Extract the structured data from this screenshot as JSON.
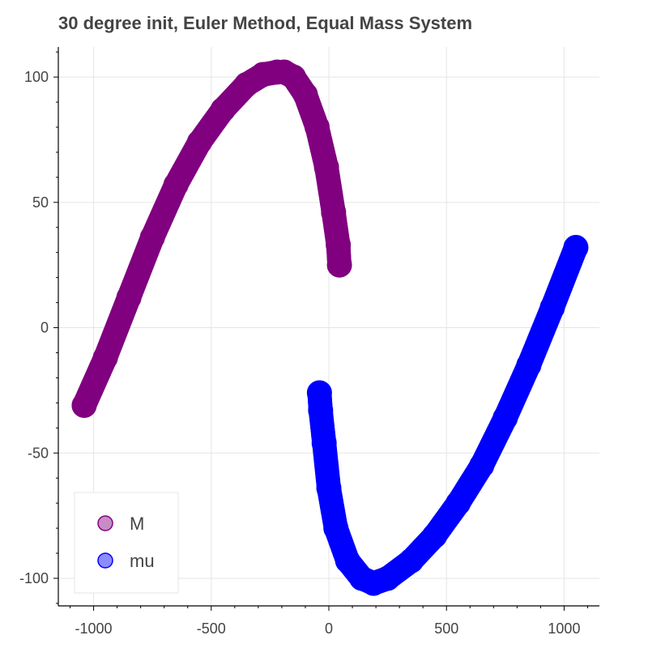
{
  "chart_data": {
    "type": "scatter",
    "title": "30 degree init, Euler Method, Equal Mass System",
    "xlabel": "",
    "ylabel": "",
    "xlim": [
      -1150,
      1150
    ],
    "ylim": [
      -111,
      112
    ],
    "x_ticks": [
      -1000,
      -500,
      0,
      500,
      1000
    ],
    "x_tick_labels": [
      "-1000",
      "-500",
      "0",
      "500",
      "1000"
    ],
    "y_ticks": [
      -100,
      -50,
      0,
      50,
      100
    ],
    "y_tick_labels": [
      "-100",
      "-50",
      "0",
      "50",
      "100"
    ],
    "grid": true,
    "legend_position": "bottom-left",
    "series": [
      {
        "name": "M",
        "color": "#800080",
        "x": [
          -1040,
          -950,
          -850,
          -750,
          -650,
          -550,
          -450,
          -350,
          -280,
          -220,
          -190,
          -150,
          -100,
          -50,
          -10,
          20,
          40,
          45
        ],
        "y": [
          -31,
          -12,
          12,
          36,
          57,
          74,
          87,
          97,
          101,
          102,
          102,
          100,
          93,
          80,
          64,
          46,
          33,
          25
        ]
      },
      {
        "name": "mu",
        "color": "#0000ff",
        "x": [
          -40,
          -35,
          -20,
          0,
          30,
          80,
          140,
          190,
          250,
          350,
          450,
          550,
          650,
          750,
          850,
          950,
          1050
        ],
        "y": [
          -26,
          -33,
          -46,
          -64,
          -80,
          -93,
          -100,
          -102,
          -100,
          -93,
          -83,
          -70,
          -55,
          -36,
          -15,
          8,
          32
        ]
      }
    ]
  }
}
